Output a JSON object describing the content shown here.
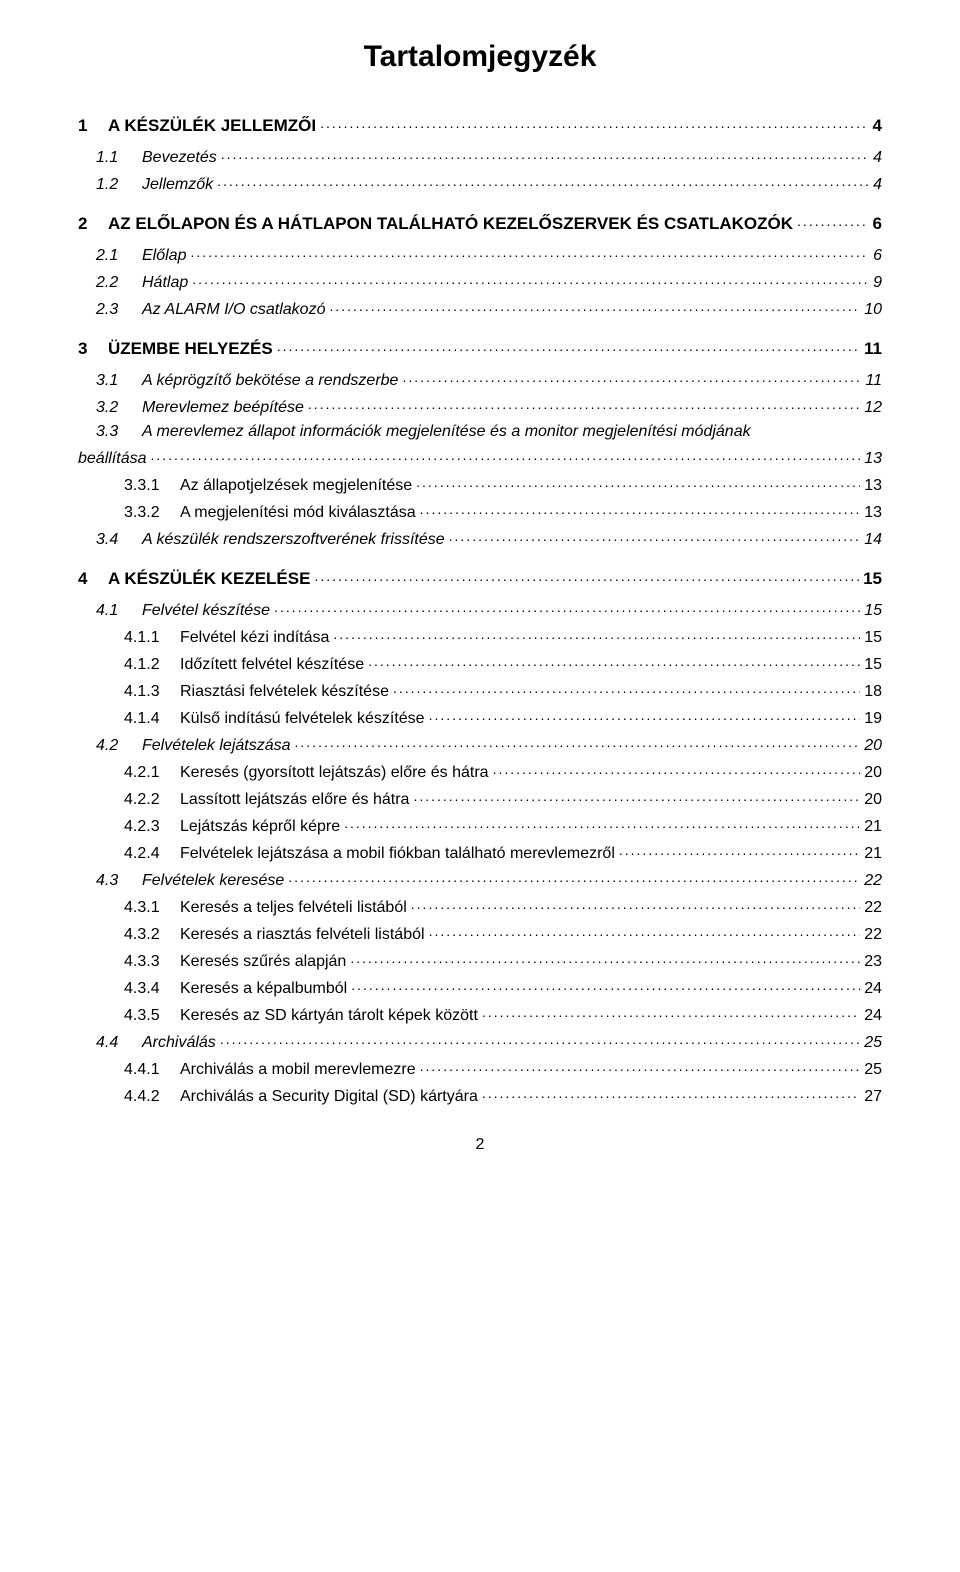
{
  "title": "Tartalomjegyzék",
  "footer_page": "2",
  "entries": [
    {
      "level": 1,
      "num": "1",
      "label": "A KÉSZÜLÉK JELLEMZŐI",
      "page": "4",
      "style": "bold"
    },
    {
      "level": 2,
      "num": "1.1",
      "label": "Bevezetés",
      "page": "4",
      "style": "italic"
    },
    {
      "level": 2,
      "num": "1.2",
      "label": "Jellemzők",
      "page": "4",
      "style": "italic"
    },
    {
      "level": 1,
      "num": "2",
      "label": "AZ ELŐLAPON ÉS A HÁTLAPON TALÁLHATÓ KEZELŐSZERVEK ÉS CSATLAKOZÓK",
      "page": "6",
      "style": "bold"
    },
    {
      "level": 2,
      "num": "2.1",
      "label": "Előlap",
      "page": "6",
      "style": "italic"
    },
    {
      "level": 2,
      "num": "2.2",
      "label": "Hátlap",
      "page": "9",
      "style": "italic"
    },
    {
      "level": 2,
      "num": "2.3",
      "label": "Az ALARM I/O csatlakozó",
      "page": "10",
      "style": "italic"
    },
    {
      "level": 1,
      "num": "3",
      "label": "ÜZEMBE HELYEZÉS",
      "page": "11",
      "style": "bold"
    },
    {
      "level": 2,
      "num": "3.1",
      "label": "A képrögzítő bekötése a rendszerbe",
      "page": "11",
      "style": "italic"
    },
    {
      "level": 2,
      "num": "3.2",
      "label": "Merevlemez beépítése",
      "page": "12",
      "style": "italic"
    },
    {
      "level": 2,
      "num": "3.3",
      "label": "A merevlemez állapot információk megjelenítése és a monitor megjelenítési módjának",
      "page": "",
      "style": "italic",
      "nowrap_page": true
    },
    {
      "level": "wrap",
      "num": "",
      "label": "beállítása",
      "page": "13",
      "style": "italic"
    },
    {
      "level": 3,
      "num": "3.3.1",
      "label": "Az állapotjelzések megjelenítése",
      "page": "13",
      "style": "normal"
    },
    {
      "level": 3,
      "num": "3.3.2",
      "label": "A megjelenítési mód kiválasztása",
      "page": "13",
      "style": "normal"
    },
    {
      "level": 2,
      "num": "3.4",
      "label": "A készülék rendszerszoftverének frissítése",
      "page": "14",
      "style": "italic"
    },
    {
      "level": 1,
      "num": "4",
      "label": "A KÉSZÜLÉK KEZELÉSE",
      "page": "15",
      "style": "bold"
    },
    {
      "level": 2,
      "num": "4.1",
      "label": "Felvétel készítése",
      "page": "15",
      "style": "italic"
    },
    {
      "level": 3,
      "num": "4.1.1",
      "label": "Felvétel kézi indítása",
      "page": "15",
      "style": "normal"
    },
    {
      "level": 3,
      "num": "4.1.2",
      "label": "Időzített felvétel készítése",
      "page": "15",
      "style": "normal"
    },
    {
      "level": 3,
      "num": "4.1.3",
      "label": "Riasztási felvételek készítése",
      "page": "18",
      "style": "normal"
    },
    {
      "level": 3,
      "num": "4.1.4",
      "label": "Külső indítású felvételek készítése",
      "page": "19",
      "style": "normal"
    },
    {
      "level": 2,
      "num": "4.2",
      "label": "Felvételek lejátszása",
      "page": "20",
      "style": "italic"
    },
    {
      "level": 3,
      "num": "4.2.1",
      "label": "Keresés (gyorsított lejátszás) előre és hátra",
      "page": "20",
      "style": "normal"
    },
    {
      "level": 3,
      "num": "4.2.2",
      "label": "Lassított lejátszás előre és hátra",
      "page": "20",
      "style": "normal"
    },
    {
      "level": 3,
      "num": "4.2.3",
      "label": "Lejátszás képről képre",
      "page": "21",
      "style": "normal"
    },
    {
      "level": 3,
      "num": "4.2.4",
      "label": "Felvételek lejátszása a mobil fiókban található merevlemezről",
      "page": "21",
      "style": "normal"
    },
    {
      "level": 2,
      "num": "4.3",
      "label": "Felvételek keresése",
      "page": "22",
      "style": "italic"
    },
    {
      "level": 3,
      "num": "4.3.1",
      "label": "Keresés a teljes felvételi listából",
      "page": "22",
      "style": "normal"
    },
    {
      "level": 3,
      "num": "4.3.2",
      "label": "Keresés a riasztás felvételi listából",
      "page": "22",
      "style": "normal"
    },
    {
      "level": 3,
      "num": "4.3.3",
      "label": "Keresés szűrés alapján",
      "page": "23",
      "style": "normal"
    },
    {
      "level": 3,
      "num": "4.3.4",
      "label": "Keresés a képalbumból",
      "page": "24",
      "style": "normal"
    },
    {
      "level": 3,
      "num": "4.3.5",
      "label": "Keresés az SD kártyán tárolt képek között",
      "page": "24",
      "style": "normal"
    },
    {
      "level": 2,
      "num": "4.4",
      "label": "Archiválás",
      "page": "25",
      "style": "italic"
    },
    {
      "level": 3,
      "num": "4.4.1",
      "label": "Archiválás a mobil merevlemezre",
      "page": "25",
      "style": "normal"
    },
    {
      "level": 3,
      "num": "4.4.2",
      "label": "Archiválás a Security Digital (SD) kártyára",
      "page": "27",
      "style": "normal"
    }
  ]
}
